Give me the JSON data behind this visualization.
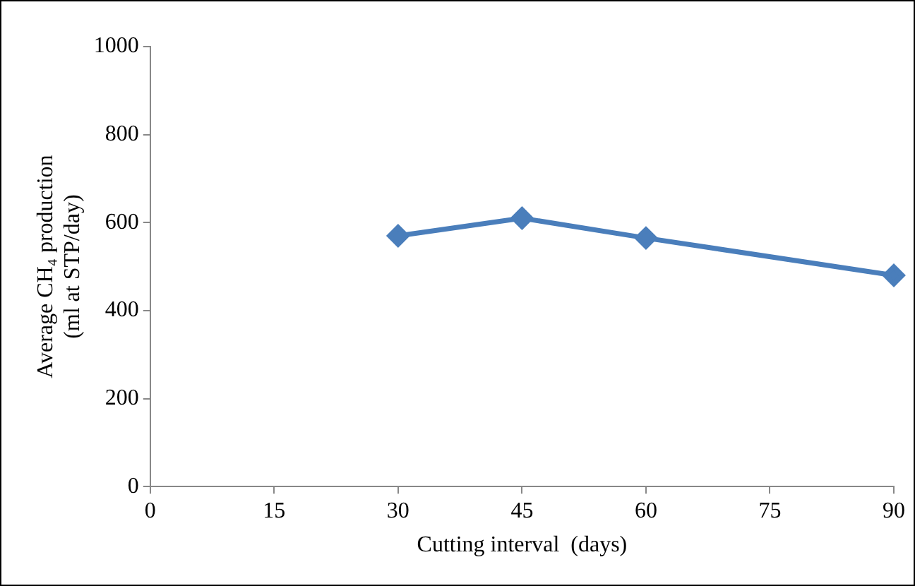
{
  "chart_data": {
    "type": "line",
    "xlabel": "Cutting interval  (days)",
    "ylabel": "Average CH₄ production\n(ml at STP/day)",
    "x": [
      30,
      45,
      60,
      90
    ],
    "series": [
      {
        "color": "#4a7ebb",
        "values": [
          570,
          610,
          565,
          480
        ]
      }
    ],
    "xlim": [
      0,
      90
    ],
    "xticks": [
      0,
      15,
      30,
      45,
      60,
      75,
      90
    ],
    "ylim": [
      0,
      1000
    ],
    "yticks": [
      0,
      200,
      400,
      600,
      800,
      1000
    ],
    "grid": false,
    "legend": false,
    "marker": "diamond",
    "line_style": "solid"
  }
}
